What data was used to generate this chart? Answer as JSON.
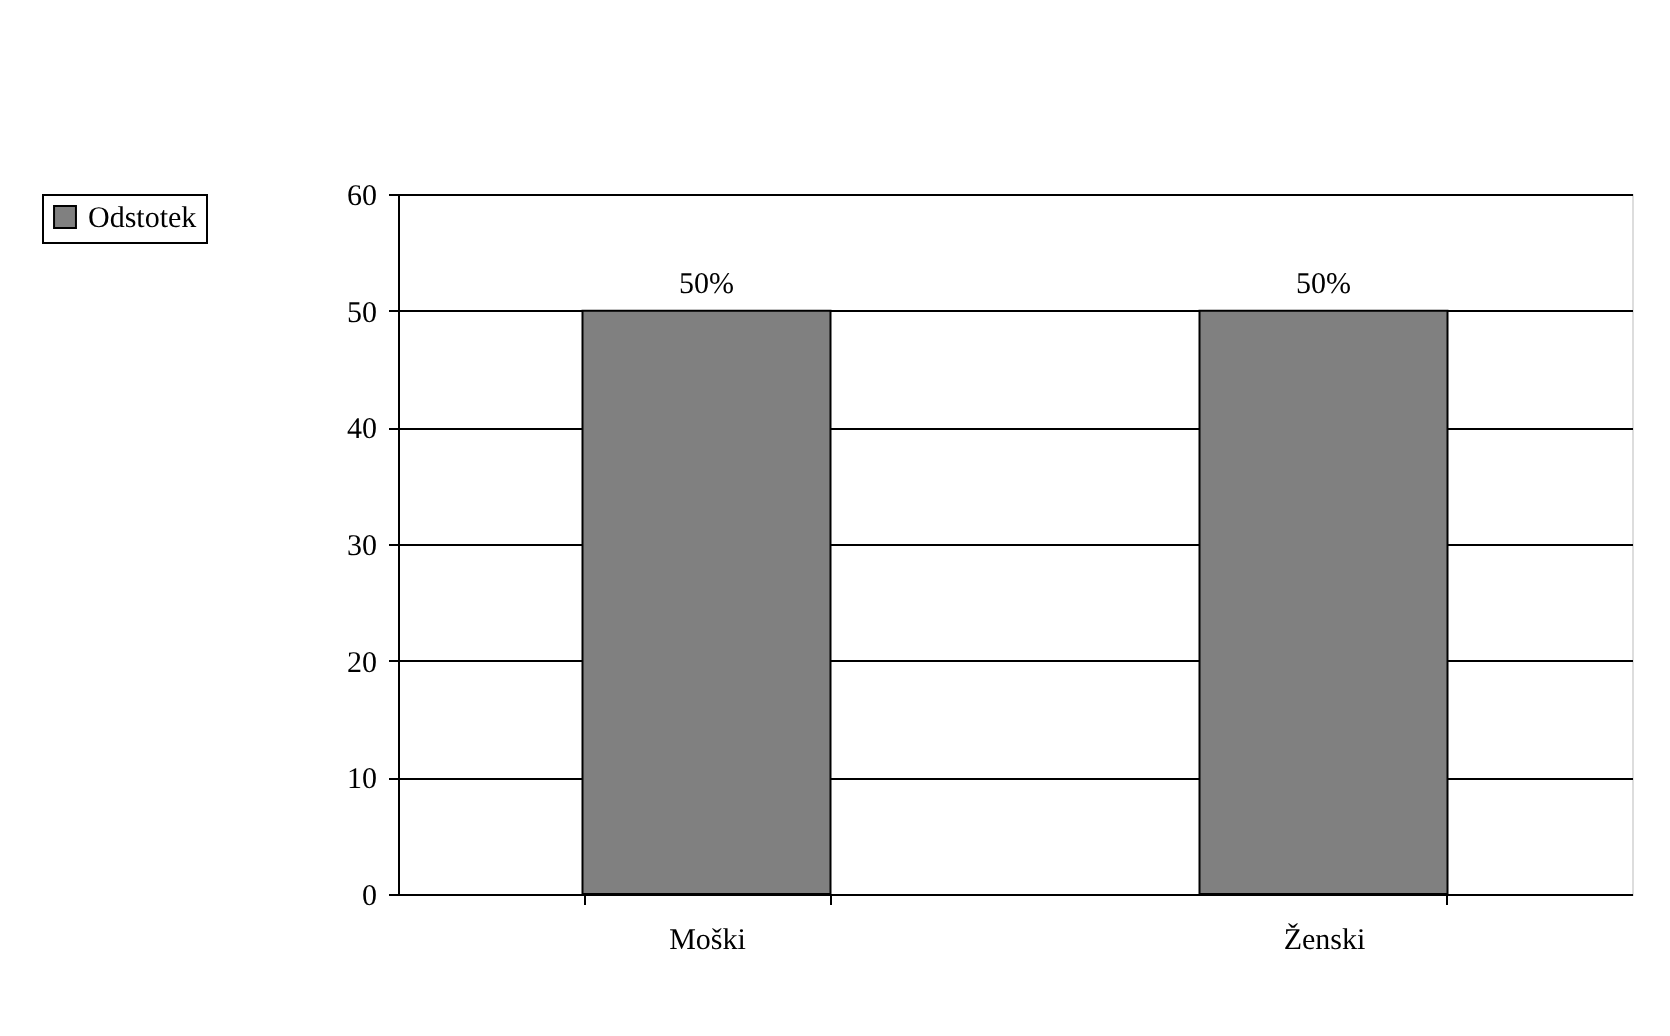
{
  "chart_data": {
    "type": "bar",
    "categories": [
      "Moški",
      "Ženski"
    ],
    "series": [
      {
        "name": "Odstotek",
        "color": "#808080",
        "values": [
          50,
          50
        ],
        "value_labels": [
          "50%",
          "50%"
        ]
      }
    ],
    "ylim": [
      0,
      60
    ],
    "yticks": [
      0,
      10,
      20,
      30,
      40,
      50,
      60
    ],
    "grid": "y",
    "legend": "left"
  }
}
